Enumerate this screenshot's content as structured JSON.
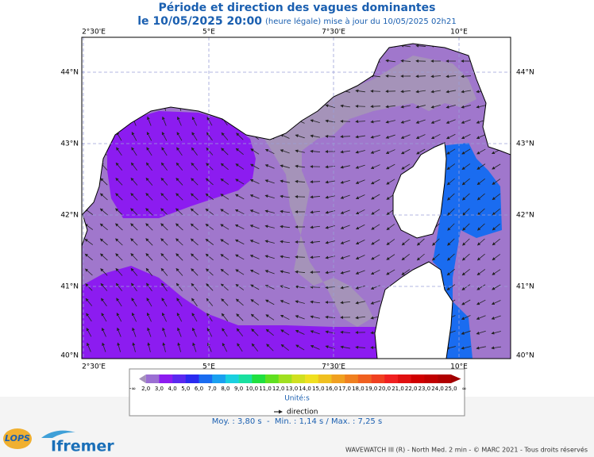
{
  "header": {
    "title": "Période et direction des vagues dominantes",
    "date": "le 10/05/2025 20:00",
    "note": "(heure légale) mise à jour du 10/05/2025 02h21"
  },
  "map": {
    "lon_labels": [
      "2°30'E",
      "5°E",
      "7°30'E",
      "10°E"
    ],
    "lat_labels": [
      "44°N",
      "43°N",
      "42°N",
      "41°N",
      "40°N"
    ]
  },
  "colorbar": {
    "labels": [
      "-∞",
      "2,0",
      "3,0",
      "4,0",
      "5,0",
      "6,0",
      "7,0",
      "8,0",
      "9,0",
      "10,0",
      "11,0",
      "12,0",
      "13,0",
      "14,0",
      "15,0",
      "16,0",
      "17,0",
      "18,0",
      "19,0",
      "20,0",
      "21,0",
      "22,0",
      "23,0",
      "24,0",
      "25,0",
      "∞"
    ],
    "colors": [
      "#a593b9",
      "#9b6fd3",
      "#8c1cf0",
      "#5a28f0",
      "#2a2af0",
      "#1a6cf0",
      "#1aa0f0",
      "#1ad0e0",
      "#1ae0a0",
      "#20e040",
      "#60e020",
      "#a0e020",
      "#d0e020",
      "#f0e020",
      "#f0c020",
      "#f0a020",
      "#f08020",
      "#f06020",
      "#f04020",
      "#f02020",
      "#e01010",
      "#d00000",
      "#c00000",
      "#b00000",
      "#a00000"
    ],
    "unit": "Unité:s",
    "legend": "direction"
  },
  "stats": "Moy. : 3,80 s  -  Min. : 1,14 s / Max. : 7,25 s",
  "footer": "WAVEWATCH III (R) - North Med. 2 min - © MARC 2021 - Tous droits réservés",
  "logos": {
    "lops": "LOPS",
    "ifremer": "Ifremer"
  }
}
